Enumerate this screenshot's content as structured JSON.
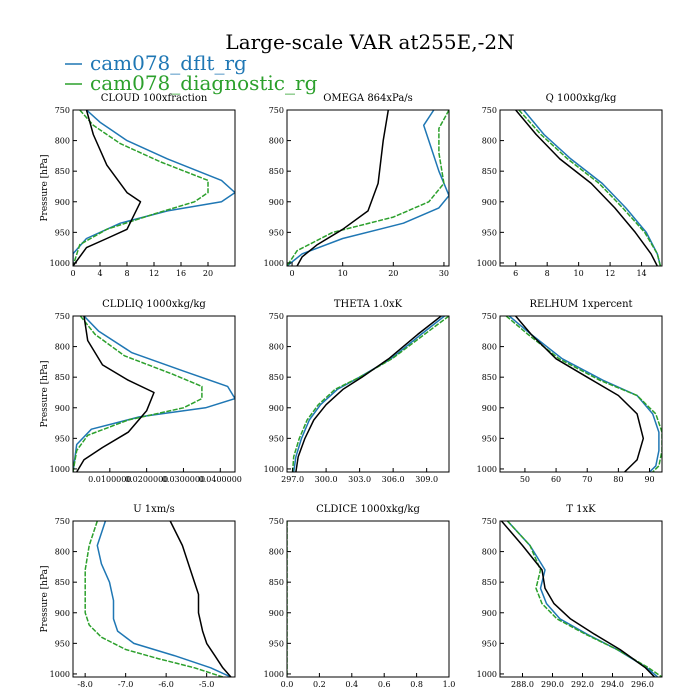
{
  "title": "Large-scale VAR at255E,-2N",
  "legend": [
    {
      "label": "cam078_dflt_rg",
      "color": "#1f77b4"
    },
    {
      "label": "cam078_diagnostic_rg",
      "color": "#2ca02c"
    }
  ],
  "chart_data": [
    {
      "type": "line",
      "title": "CLOUD  100xfraction",
      "ylabel": "Pressure [hPa]",
      "xlim": [
        0,
        24
      ],
      "ylim": [
        1005,
        750
      ],
      "xticks": [
        0,
        4,
        8,
        12,
        16,
        20
      ],
      "xticklabels": [
        "0",
        "4",
        "8",
        "12",
        "16",
        "20"
      ],
      "yticks": [
        750,
        800,
        850,
        900,
        950,
        1000
      ],
      "yticklabels": [
        "750",
        "800",
        "850",
        "900",
        "950",
        "1000"
      ],
      "series": [
        {
          "color": "#1f77b4",
          "x": [
            2,
            4,
            8,
            14,
            22,
            24,
            22,
            14,
            7,
            2,
            0,
            0
          ],
          "y": [
            750,
            770,
            800,
            830,
            865,
            885,
            900,
            915,
            935,
            960,
            985,
            1005
          ]
        },
        {
          "color": "#2ca02c",
          "x": [
            1,
            3,
            7,
            13,
            20,
            20,
            18,
            12,
            5,
            1,
            0
          ],
          "y": [
            750,
            775,
            805,
            835,
            865,
            885,
            900,
            920,
            945,
            970,
            1005
          ]
        },
        {
          "color": "#000000",
          "x": [
            2,
            3,
            5,
            8,
            10,
            8,
            5,
            2,
            0
          ],
          "y": [
            750,
            790,
            840,
            885,
            900,
            945,
            960,
            975,
            1005
          ]
        }
      ]
    },
    {
      "type": "line",
      "title": "OMEGA  864xPa/s",
      "ylabel": "",
      "xlim": [
        -1,
        31
      ],
      "ylim": [
        1005,
        750
      ],
      "xticks": [
        0,
        10,
        20,
        30
      ],
      "xticklabels": [
        "0",
        "10",
        "20",
        "30"
      ],
      "yticks": [
        750,
        800,
        850,
        900,
        950,
        1000
      ],
      "yticklabels": [
        "750",
        "800",
        "850",
        "900",
        "950",
        "1000"
      ],
      "series": [
        {
          "color": "#1f77b4",
          "x": [
            28,
            26,
            27,
            29,
            31,
            29,
            22,
            10,
            2,
            -1
          ],
          "y": [
            750,
            775,
            800,
            850,
            890,
            910,
            935,
            960,
            985,
            1005
          ]
        },
        {
          "color": "#2ca02c",
          "x": [
            31,
            29,
            29,
            30,
            27,
            20,
            8,
            1,
            -1
          ],
          "y": [
            750,
            780,
            820,
            870,
            900,
            925,
            950,
            980,
            1005
          ]
        },
        {
          "color": "#000000",
          "x": [
            19,
            18,
            17,
            15,
            10,
            5,
            2,
            1
          ],
          "y": [
            750,
            800,
            870,
            915,
            945,
            970,
            990,
            1005
          ]
        }
      ]
    },
    {
      "type": "line",
      "title": "Q  1000xkg/kg",
      "ylabel": "",
      "xlim": [
        5,
        15.3
      ],
      "ylim": [
        1005,
        750
      ],
      "xticks": [
        6,
        8,
        10,
        12,
        14
      ],
      "xticklabels": [
        "6",
        "8",
        "10",
        "12",
        "14"
      ],
      "yticks": [
        750,
        800,
        850,
        900,
        950,
        1000
      ],
      "yticklabels": [
        "750",
        "800",
        "850",
        "900",
        "950",
        "1000"
      ],
      "series": [
        {
          "color": "#1f77b4",
          "x": [
            6.5,
            7.8,
            9.5,
            11.5,
            13.0,
            14.3,
            15.0,
            15.2
          ],
          "y": [
            750,
            790,
            830,
            870,
            910,
            950,
            985,
            1005
          ]
        },
        {
          "color": "#2ca02c",
          "x": [
            6.2,
            7.6,
            9.3,
            11.3,
            12.8,
            14.2,
            15.0,
            15.2
          ],
          "y": [
            750,
            790,
            830,
            870,
            910,
            950,
            985,
            1005
          ]
        },
        {
          "color": "#000000",
          "x": [
            6.0,
            7.3,
            8.8,
            10.8,
            12.3,
            13.6,
            14.6,
            15.0
          ],
          "y": [
            750,
            790,
            830,
            870,
            910,
            950,
            985,
            1005
          ]
        }
      ]
    },
    {
      "type": "line",
      "title": "CLDLIQ  1000xkg/kg",
      "ylabel": "Pressure [hPa]",
      "xlim": [
        0,
        0.044
      ],
      "ylim": [
        1005,
        750
      ],
      "xticks": [
        0.01,
        0.02,
        0.03,
        0.04
      ],
      "xticklabels": [
        "0.0100000",
        "0.0200000",
        "0.0300000",
        "0.0400000"
      ],
      "yticks": [
        750,
        800,
        850,
        900,
        950,
        1000
      ],
      "yticklabels": [
        "750",
        "800",
        "850",
        "900",
        "950",
        "1000"
      ],
      "series": [
        {
          "color": "#1f77b4",
          "x": [
            0.003,
            0.007,
            0.016,
            0.03,
            0.042,
            0.044,
            0.036,
            0.018,
            0.005,
            0.001,
            0.0
          ],
          "y": [
            750,
            775,
            810,
            840,
            865,
            885,
            900,
            915,
            935,
            960,
            1005
          ]
        },
        {
          "color": "#2ca02c",
          "x": [
            0.002,
            0.006,
            0.014,
            0.027,
            0.035,
            0.035,
            0.03,
            0.015,
            0.004,
            0.001,
            0.0
          ],
          "y": [
            750,
            780,
            815,
            845,
            865,
            885,
            900,
            920,
            945,
            970,
            1005
          ]
        },
        {
          "color": "#000000",
          "x": [
            0.003,
            0.004,
            0.008,
            0.015,
            0.022,
            0.02,
            0.015,
            0.008,
            0.003,
            0.001
          ],
          "y": [
            750,
            790,
            830,
            855,
            875,
            905,
            940,
            965,
            985,
            1005
          ]
        }
      ]
    },
    {
      "type": "line",
      "title": "THETA  1.0xK",
      "ylabel": "",
      "xlim": [
        296.5,
        311
      ],
      "ylim": [
        1005,
        750
      ],
      "xticks": [
        297.0,
        300.0,
        303.0,
        306.0,
        309.0
      ],
      "xticklabels": [
        "297.0",
        "300.0",
        "303.0",
        "306.0",
        "309.0"
      ],
      "yticks": [
        750,
        800,
        850,
        900,
        950,
        1000
      ],
      "yticklabels": [
        "750",
        "800",
        "850",
        "900",
        "950",
        "1000"
      ],
      "series": [
        {
          "color": "#1f77b4",
          "x": [
            310.6,
            308.5,
            305.8,
            303.0,
            301.0,
            299.5,
            298.5,
            297.8,
            297.3,
            297.1
          ],
          "y": [
            750,
            780,
            820,
            850,
            870,
            895,
            920,
            950,
            980,
            1005
          ]
        },
        {
          "color": "#2ca02c",
          "x": [
            311.0,
            308.8,
            305.9,
            303.0,
            300.8,
            299.3,
            298.3,
            297.6,
            297.1,
            297.0
          ],
          "y": [
            750,
            780,
            820,
            850,
            870,
            895,
            920,
            950,
            980,
            1005
          ]
        },
        {
          "color": "#000000",
          "x": [
            310.3,
            308.2,
            305.6,
            303.2,
            301.5,
            300.0,
            298.9,
            298.1,
            297.5,
            297.3
          ],
          "y": [
            750,
            780,
            820,
            850,
            870,
            895,
            920,
            950,
            980,
            1005
          ]
        }
      ]
    },
    {
      "type": "line",
      "title": "RELHUM  1xpercent",
      "ylabel": "",
      "xlim": [
        42,
        94
      ],
      "ylim": [
        1005,
        750
      ],
      "xticks": [
        50,
        60,
        70,
        80,
        90
      ],
      "xticklabels": [
        "50",
        "60",
        "70",
        "80",
        "90"
      ],
      "yticks": [
        750,
        800,
        850,
        900,
        950,
        1000
      ],
      "yticklabels": [
        "750",
        "800",
        "850",
        "900",
        "950",
        "1000"
      ],
      "series": [
        {
          "color": "#1f77b4",
          "x": [
            45,
            52,
            62,
            75,
            86,
            91,
            93,
            93,
            92,
            90
          ],
          "y": [
            750,
            780,
            820,
            855,
            880,
            910,
            940,
            970,
            995,
            1005
          ]
        },
        {
          "color": "#2ca02c",
          "x": [
            44,
            51,
            61,
            74,
            86,
            92,
            94,
            94,
            93,
            91
          ],
          "y": [
            750,
            780,
            820,
            855,
            880,
            910,
            940,
            970,
            995,
            1005
          ]
        },
        {
          "color": "#000000",
          "x": [
            47,
            52,
            60,
            70,
            80,
            86,
            88,
            86,
            82
          ],
          "y": [
            750,
            780,
            820,
            850,
            880,
            910,
            950,
            985,
            1005
          ]
        }
      ]
    },
    {
      "type": "line",
      "title": "U  1xm/s",
      "ylabel": "Pressure [hPa]",
      "xlim": [
        -8.3,
        -4.3
      ],
      "ylim": [
        1005,
        750
      ],
      "xticks": [
        -8.0,
        -7.0,
        -6.0,
        -5.0
      ],
      "xticklabels": [
        "-8.0",
        "-7.0",
        "-6.0",
        "-5.0"
      ],
      "yticks": [
        750,
        800,
        850,
        900,
        950,
        1000
      ],
      "yticklabels": [
        "750",
        "800",
        "850",
        "900",
        "950",
        "1000"
      ],
      "series": [
        {
          "color": "#1f77b4",
          "x": [
            -7.5,
            -7.7,
            -7.6,
            -7.4,
            -7.3,
            -7.3,
            -7.2,
            -6.8,
            -5.8,
            -4.9,
            -4.4
          ],
          "y": [
            750,
            790,
            820,
            850,
            880,
            910,
            930,
            950,
            970,
            990,
            1005
          ]
        },
        {
          "color": "#2ca02c",
          "x": [
            -7.7,
            -7.9,
            -8.0,
            -8.0,
            -8.0,
            -7.9,
            -7.6,
            -7.0,
            -6.2,
            -5.3,
            -4.6
          ],
          "y": [
            750,
            790,
            830,
            870,
            900,
            920,
            940,
            960,
            975,
            990,
            1005
          ]
        },
        {
          "color": "#000000",
          "x": [
            -5.9,
            -5.6,
            -5.4,
            -5.2,
            -5.2,
            -5.1,
            -5.0,
            -4.8,
            -4.6,
            -4.4
          ],
          "y": [
            750,
            790,
            830,
            870,
            900,
            930,
            950,
            970,
            990,
            1005
          ]
        }
      ]
    },
    {
      "type": "line",
      "title": "CLDICE  1000xkg/kg",
      "ylabel": "",
      "xlim": [
        0,
        1
      ],
      "ylim": [
        1005,
        750
      ],
      "xticks": [
        0.0,
        0.2,
        0.4,
        0.6,
        0.8,
        1.0
      ],
      "xticklabels": [
        "0.0",
        "0.2",
        "0.4",
        "0.6",
        "0.8",
        "1.0"
      ],
      "yticks": [
        750,
        800,
        850,
        900,
        950,
        1000
      ],
      "yticklabels": [
        "750",
        "800",
        "850",
        "900",
        "950",
        "1000"
      ],
      "series": [
        {
          "color": "#2ca02c",
          "x": [
            0,
            0
          ],
          "y": [
            750,
            1005
          ]
        }
      ]
    },
    {
      "type": "line",
      "title": "T  1xK",
      "ylabel": "",
      "xlim": [
        286.5,
        297.3
      ],
      "ylim": [
        1005,
        750
      ],
      "xticks": [
        288.0,
        290.0,
        292.0,
        294.0,
        296.0
      ],
      "xticklabels": [
        "288.0",
        "290.0",
        "292.0",
        "294.0",
        "296.0"
      ],
      "yticks": [
        750,
        800,
        850,
        900,
        950,
        1000
      ],
      "yticklabels": [
        "750",
        "800",
        "850",
        "900",
        "950",
        "1000"
      ],
      "series": [
        {
          "color": "#1f77b4",
          "x": [
            287.0,
            288.5,
            289.5,
            289.2,
            289.6,
            290.5,
            292.3,
            294.3,
            296.3,
            297.0
          ],
          "y": [
            750,
            790,
            830,
            860,
            885,
            910,
            935,
            960,
            990,
            1005
          ]
        },
        {
          "color": "#2ca02c",
          "x": [
            287.0,
            288.5,
            289.2,
            288.9,
            289.3,
            290.3,
            292.2,
            294.3,
            296.4,
            297.3
          ],
          "y": [
            750,
            790,
            830,
            860,
            885,
            910,
            935,
            960,
            990,
            1005
          ]
        },
        {
          "color": "#000000",
          "x": [
            286.6,
            288.0,
            289.3,
            289.5,
            290.1,
            291.2,
            292.8,
            294.5,
            296.2,
            296.8
          ],
          "y": [
            750,
            790,
            830,
            860,
            885,
            910,
            935,
            960,
            990,
            1005
          ]
        }
      ]
    }
  ]
}
